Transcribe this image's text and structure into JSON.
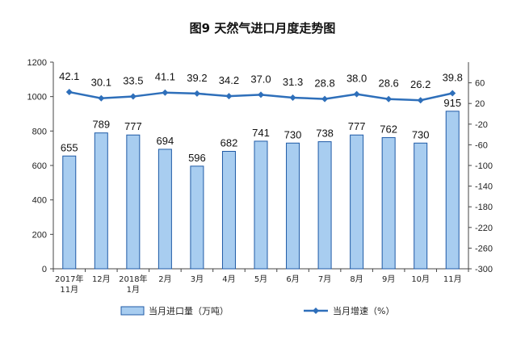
{
  "chart_data": {
    "type": "bar",
    "title": "图9  天然气进口月度走势图",
    "categories": [
      [
        "2017年",
        "11月"
      ],
      [
        "12月"
      ],
      [
        "2018年",
        "1月"
      ],
      [
        "2月"
      ],
      [
        "3月"
      ],
      [
        "4月"
      ],
      [
        "5月"
      ],
      [
        "6月"
      ],
      [
        "7月"
      ],
      [
        "8月"
      ],
      [
        "9月"
      ],
      [
        "10月"
      ],
      [
        "11月"
      ]
    ],
    "series": [
      {
        "name": "当月进口量（万吨）",
        "type": "bar",
        "axis": "left",
        "color": "#a8cdf0",
        "values": [
          655,
          789,
          777,
          694,
          596,
          682,
          741,
          730,
          738,
          777,
          762,
          730,
          915
        ],
        "labels": [
          "655",
          "789",
          "777",
          "694",
          "596",
          "682",
          "741",
          "730",
          "738",
          "777",
          "762",
          "730",
          "915"
        ]
      },
      {
        "name": "当月增速（%）",
        "type": "line",
        "axis": "right",
        "color": "#2e6fba",
        "values": [
          42.1,
          30.1,
          33.5,
          41.1,
          39.2,
          34.2,
          37.0,
          31.3,
          28.8,
          38.0,
          28.6,
          26.2,
          39.8
        ],
        "labels": [
          "42.1",
          "30.1",
          "33.5",
          "41.1",
          "39.2",
          "34.2",
          "37.0",
          "31.3",
          "28.8",
          "38.0",
          "28.6",
          "26.2",
          "39.8"
        ]
      }
    ],
    "y_left": {
      "ylim": [
        0,
        1200
      ],
      "ticks": [
        "0",
        "200",
        "400",
        "600",
        "800",
        "1000",
        "1200"
      ]
    },
    "y_right": {
      "ylim": [
        -300,
        100
      ],
      "ticks": [
        "-300",
        "-260",
        "-220",
        "-180",
        "-140",
        "-100",
        "-60",
        "-20",
        "20",
        "60"
      ]
    },
    "grid": false,
    "legend": "bottom"
  }
}
